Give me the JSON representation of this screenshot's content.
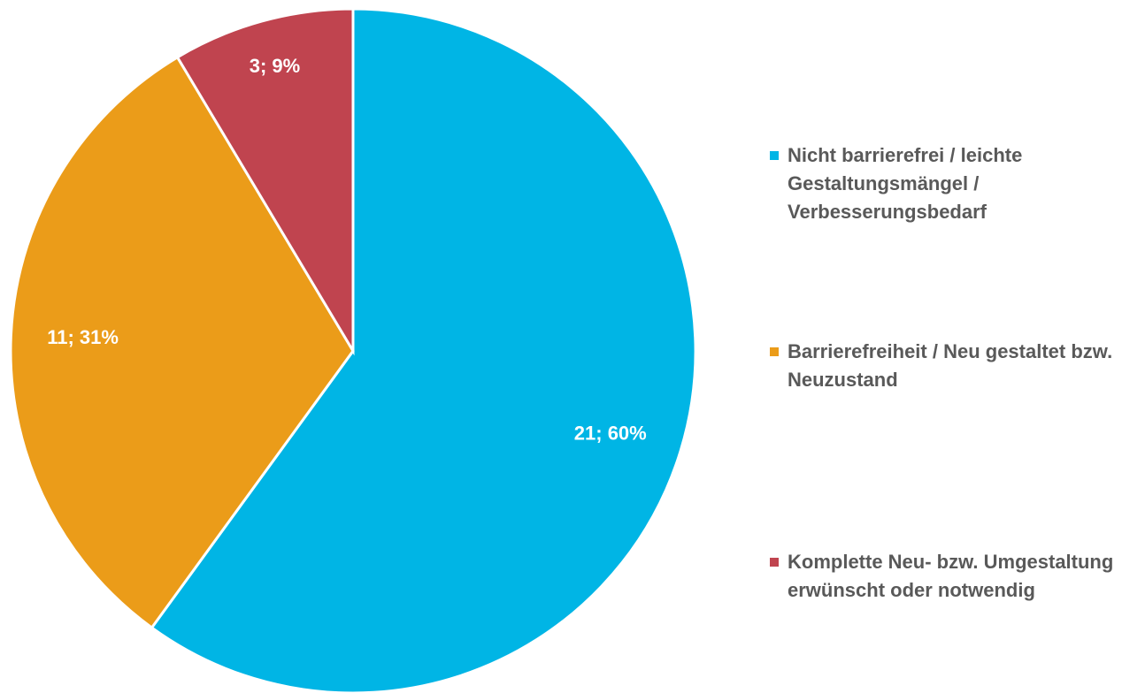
{
  "chart_data": {
    "type": "pie",
    "categories": [
      "Nicht barrierefrei / leichte Gestaltungsmängel / Verbesserungsbedarf",
      "Barrierefreiheit / Neu gestaltet bzw. Neuzustand",
      "Komplette Neu- bzw. Umgestaltung erwünscht oder notwendig"
    ],
    "values": [
      21,
      11,
      3
    ],
    "value_labels": [
      "21; 60%",
      "11; 31%",
      "3; 9%"
    ],
    "colors": [
      "#00b5e5",
      "#eb9c19",
      "#c0444f"
    ],
    "legend": "right"
  }
}
